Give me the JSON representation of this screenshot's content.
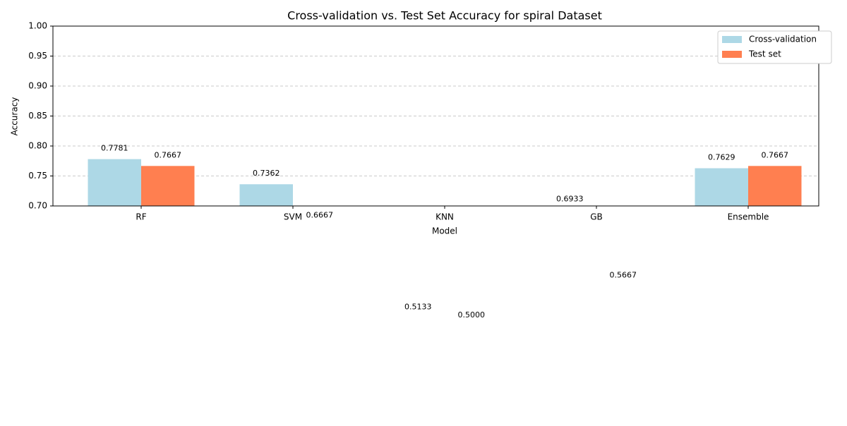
{
  "chart_data": {
    "type": "bar",
    "title": "Cross-validation vs. Test Set Accuracy for spiral Dataset",
    "x_label": "Model",
    "y_label": "Accuracy",
    "categories": [
      "RF",
      "SVM",
      "KNN",
      "GB",
      "Ensemble"
    ],
    "series": [
      {
        "name": "Cross-validation",
        "color": "#add8e6",
        "values": [
          0.7781,
          0.7362,
          0.5133,
          0.6933,
          0.7629
        ],
        "value_labels": [
          "0.7781",
          "0.7362",
          "0.5133",
          "0.6933",
          "0.7629"
        ]
      },
      {
        "name": "Test set",
        "color": "#ff7f50",
        "values": [
          0.7667,
          0.6667,
          0.5,
          0.5667,
          0.7667
        ],
        "value_labels": [
          "0.7667",
          "0.6667",
          "0.5000",
          "0.5667",
          "0.7667"
        ]
      }
    ],
    "ylim": [
      0.7,
      1.0
    ],
    "yticks": [
      {
        "value": 0.7,
        "label": "0.70"
      },
      {
        "value": 0.75,
        "label": "0.75"
      },
      {
        "value": 0.8,
        "label": "0.80"
      },
      {
        "value": 0.85,
        "label": "0.85"
      },
      {
        "value": 0.9,
        "label": "0.90"
      },
      {
        "value": 0.95,
        "label": "0.95"
      },
      {
        "value": 1.0,
        "label": "1.00"
      }
    ],
    "grid": true,
    "legend": "upper right"
  }
}
